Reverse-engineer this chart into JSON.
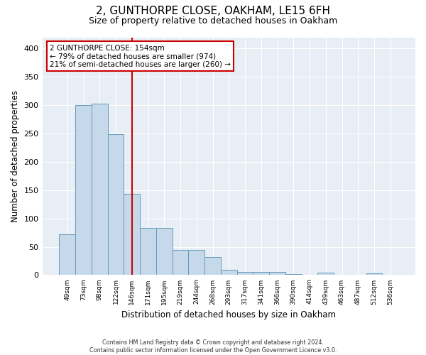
{
  "title1": "2, GUNTHORPE CLOSE, OAKHAM, LE15 6FH",
  "title2": "Size of property relative to detached houses in Oakham",
  "xlabel": "Distribution of detached houses by size in Oakham",
  "ylabel": "Number of detached properties",
  "bin_labels": [
    "49sqm",
    "73sqm",
    "98sqm",
    "122sqm",
    "146sqm",
    "171sqm",
    "195sqm",
    "219sqm",
    "244sqm",
    "268sqm",
    "293sqm",
    "317sqm",
    "341sqm",
    "366sqm",
    "390sqm",
    "414sqm",
    "439sqm",
    "463sqm",
    "487sqm",
    "512sqm",
    "536sqm"
  ],
  "bar_heights": [
    72,
    300,
    303,
    249,
    144,
    83,
    83,
    45,
    44,
    32,
    9,
    6,
    6,
    6,
    2,
    0,
    4,
    0,
    0,
    3,
    0
  ],
  "bar_color": "#c6d9ea",
  "bar_edge_color": "#6699bb",
  "vline_color": "#cc0000",
  "vline_pos": 4.5,
  "annotation_text": "2 GUNTHORPE CLOSE: 154sqm\n← 79% of detached houses are smaller (974)\n21% of semi-detached houses are larger (260) →",
  "annotation_box_color": "#ffffff",
  "annotation_box_edge": "#cc0000",
  "footnote": "Contains HM Land Registry data © Crown copyright and database right 2024.\nContains public sector information licensed under the Open Government Licence v3.0.",
  "ylim": [
    0,
    420
  ],
  "yticks": [
    0,
    50,
    100,
    150,
    200,
    250,
    300,
    350,
    400
  ],
  "background_color": "#e8eef5",
  "grid_color": "#ffffff",
  "title1_fontsize": 11,
  "title2_fontsize": 9,
  "xlabel_fontsize": 8.5,
  "ylabel_fontsize": 8.5
}
